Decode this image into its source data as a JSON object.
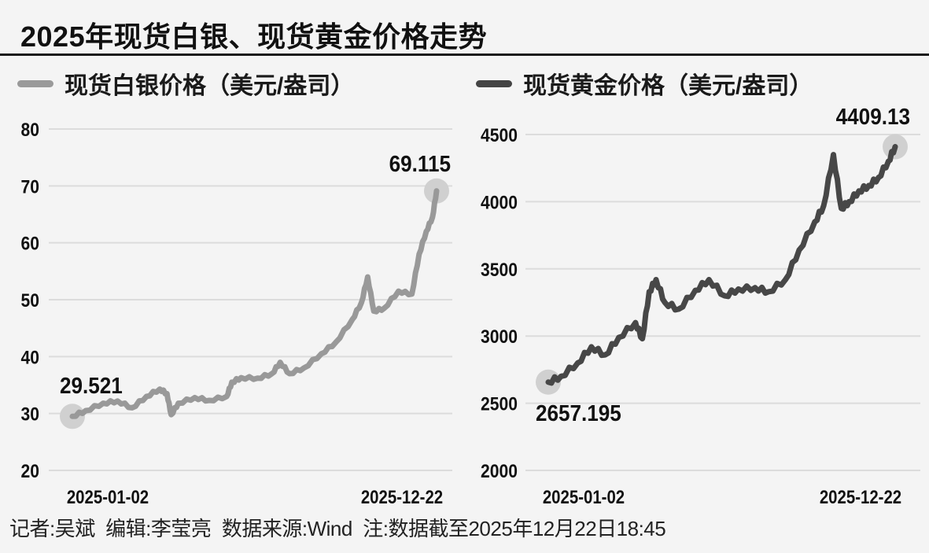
{
  "title": "2025年现货白银、现货黄金价格走势",
  "footer": "记者:吴斌  编辑:李莹亮  数据来源:Wind  注:数据截至2025年12月22日18:45",
  "colors": {
    "silver": "#999999",
    "gold": "#474747",
    "marker": "#d0d0d0",
    "grid": "#dcdcdc",
    "background": "#f4f4f4"
  },
  "chart_data": [
    {
      "type": "line",
      "title": "现货白银价格（美元/盎司）",
      "legend": "现货白银价格（美元/盎司）",
      "xlabel": "",
      "ylabel": "",
      "ylim": [
        20,
        80
      ],
      "yticks": [
        80,
        70,
        60,
        50,
        40,
        30,
        20
      ],
      "xtick_labels": [
        "2025-01-02",
        "2025-12-22"
      ],
      "grid": true,
      "annotations": [
        {
          "label": "29.521",
          "x": "2025-01-02",
          "y": 29.521
        },
        {
          "label": "69.115",
          "x": "2025-12-22",
          "y": 69.115
        }
      ],
      "x": [
        "2025-01-02",
        "2025-01-15",
        "2025-02-01",
        "2025-02-15",
        "2025-03-01",
        "2025-03-15",
        "2025-03-28",
        "2025-04-04",
        "2025-04-08",
        "2025-04-15",
        "2025-05-01",
        "2025-05-15",
        "2025-06-01",
        "2025-06-06",
        "2025-06-15",
        "2025-07-01",
        "2025-07-15",
        "2025-07-23",
        "2025-08-01",
        "2025-08-15",
        "2025-09-01",
        "2025-09-15",
        "2025-10-01",
        "2025-10-10",
        "2025-10-16",
        "2025-10-22",
        "2025-11-01",
        "2025-11-15",
        "2025-11-28",
        "2025-12-05",
        "2025-12-12",
        "2025-12-18",
        "2025-12-22"
      ],
      "series": [
        {
          "name": "现货白银",
          "values": [
            29.5,
            30.5,
            31.8,
            32.2,
            31.0,
            33.0,
            34.3,
            33.5,
            29.8,
            31.8,
            32.8,
            32.3,
            33.0,
            35.5,
            36.3,
            36.2,
            37.0,
            39.0,
            37.0,
            38.0,
            40.5,
            42.5,
            46.5,
            49.5,
            54.0,
            48.0,
            48.5,
            51.5,
            51.0,
            58.0,
            62.0,
            64.5,
            69.115
          ]
        }
      ]
    },
    {
      "type": "line",
      "title": "现货黄金价格（美元/盎司）",
      "legend": "现货黄金价格（美元/盎司）",
      "xlabel": "",
      "ylabel": "",
      "ylim": [
        2000,
        4500
      ],
      "yticks": [
        4500,
        4000,
        3500,
        3000,
        2500,
        2000
      ],
      "xtick_labels": [
        "2025-01-02",
        "2025-12-22"
      ],
      "grid": true,
      "annotations": [
        {
          "label": "2657.195",
          "x": "2025-01-02",
          "y": 2657.195
        },
        {
          "label": "4409.13",
          "x": "2025-12-22",
          "y": 4409.13
        }
      ],
      "x": [
        "2025-01-02",
        "2025-01-15",
        "2025-02-01",
        "2025-02-15",
        "2025-03-01",
        "2025-03-15",
        "2025-04-01",
        "2025-04-08",
        "2025-04-15",
        "2025-04-22",
        "2025-05-01",
        "2025-05-15",
        "2025-06-01",
        "2025-06-15",
        "2025-07-01",
        "2025-07-15",
        "2025-08-01",
        "2025-08-15",
        "2025-09-01",
        "2025-09-15",
        "2025-10-01",
        "2025-10-10",
        "2025-10-20",
        "2025-10-28",
        "2025-11-05",
        "2025-11-15",
        "2025-11-25",
        "2025-12-05",
        "2025-12-15",
        "2025-12-22"
      ],
      "series": [
        {
          "name": "现货黄金",
          "values": [
            2657.195,
            2700,
            2800,
            2920,
            2860,
            2990,
            3100,
            2980,
            3330,
            3420,
            3250,
            3200,
            3340,
            3420,
            3300,
            3350,
            3360,
            3330,
            3420,
            3640,
            3850,
            3970,
            4350,
            3950,
            4000,
            4080,
            4120,
            4180,
            4300,
            4409.13
          ]
        }
      ]
    }
  ]
}
